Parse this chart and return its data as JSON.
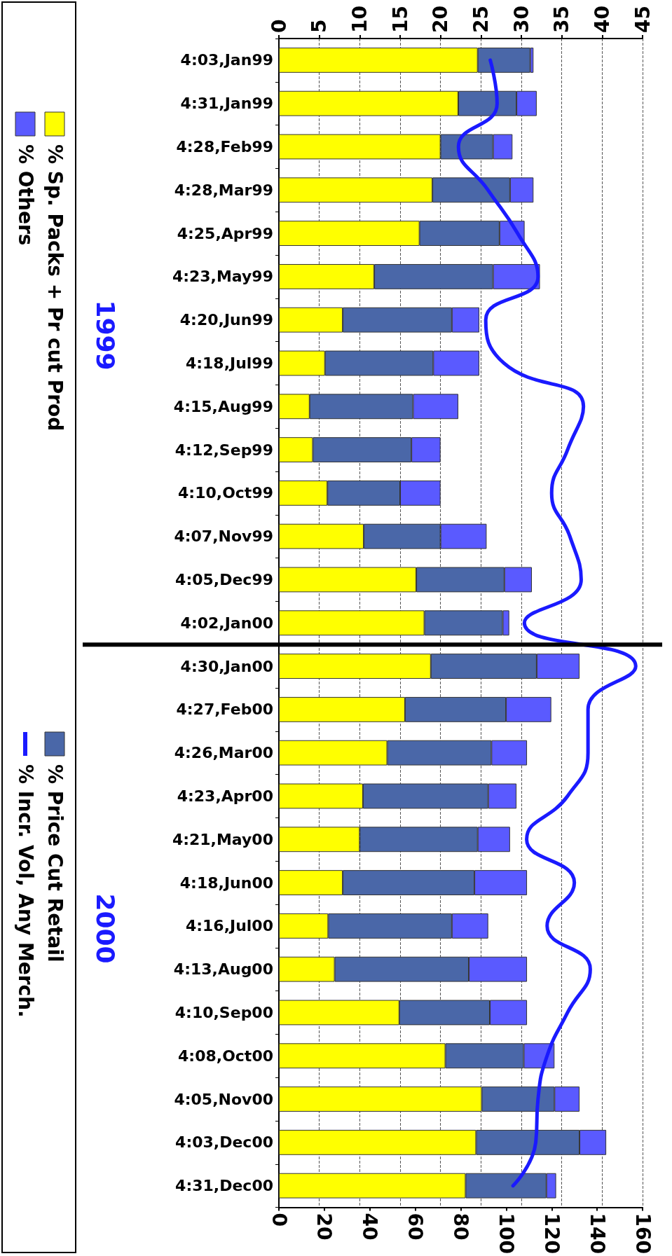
{
  "chart_data": {
    "type": "bar",
    "stacked": true,
    "orientation": "horizontal",
    "categories": [
      "4:03,Jan99",
      "4:31,Jan99",
      "4:28,Feb99",
      "4:28,Mar99",
      "4:25,Apr99",
      "4:23,May99",
      "4:20,Jun99",
      "4:18,Jul99",
      "4:15,Aug99",
      "4:12,Sep99",
      "4:10,Oct99",
      "4:07,Nov99",
      "4:05,Dec99",
      "4:02,Jan00",
      "4:30,Jan00",
      "4:27,Feb00",
      "4:26,Mar00",
      "4:23,Apr00",
      "4:21,May00",
      "4:18,Jun00",
      "4:16,Jul00",
      "4:13,Aug00",
      "4:10,Sep00",
      "4:08,Oct00",
      "4:05,Nov00",
      "4:03,Dec00",
      "4:31,Dec00"
    ],
    "series": [
      {
        "name": "% Sp. Packs + Pr cut Prod",
        "color": "#ffff00",
        "axis": "x2",
        "values": [
          24.6,
          22.2,
          20.0,
          19.0,
          17.4,
          11.8,
          7.9,
          5.7,
          3.8,
          4.2,
          6.0,
          10.5,
          17.0,
          18.0,
          18.8,
          15.6,
          13.4,
          10.4,
          10.0,
          7.9,
          6.1,
          6.9,
          14.9,
          20.6,
          25.1,
          24.4,
          23.1
        ]
      },
      {
        "name": "% Price Cut Retail",
        "color": "#4a67a8",
        "axis": "x2",
        "values": [
          6.5,
          7.2,
          6.5,
          9.6,
          9.9,
          14.7,
          13.5,
          13.4,
          12.8,
          12.2,
          9.0,
          9.5,
          10.9,
          9.7,
          13.1,
          12.5,
          12.9,
          15.5,
          14.6,
          16.3,
          15.3,
          16.6,
          11.2,
          9.7,
          9.0,
          12.8,
          10.0
        ]
      },
      {
        "name": "% Others",
        "color": "#5a5aff",
        "axis": "x2",
        "values": [
          0.4,
          2.5,
          2.4,
          2.9,
          3.1,
          5.8,
          3.4,
          5.7,
          5.6,
          3.6,
          5.0,
          5.7,
          3.4,
          0.8,
          5.3,
          5.6,
          4.4,
          3.5,
          4.0,
          6.5,
          4.5,
          7.2,
          4.6,
          3.8,
          3.1,
          3.3,
          1.2
        ]
      },
      {
        "name": "% Incr. Vol, Any Merch.",
        "color": "#1a1aff",
        "type": "line",
        "values": [
          93,
          96,
          79,
          92,
          105,
          114,
          91,
          99,
          134,
          127,
          120,
          128,
          133,
          108,
          157,
          136,
          136,
          127,
          109,
          130,
          118,
          137,
          127,
          118,
          114,
          113,
          103
        ]
      }
    ],
    "xlim": [
      0,
      160
    ],
    "xticks": [
      0,
      20,
      40,
      60,
      80,
      100,
      120,
      140,
      160
    ],
    "x2lim": [
      0,
      45
    ],
    "x2ticks": [
      0,
      5,
      10,
      15,
      20,
      25,
      30,
      35,
      40,
      45
    ],
    "grid": "x2",
    "legend": "left",
    "marker": "none",
    "ref_lines": [
      {
        "axis": "y",
        "value": "4:30,Jan00",
        "color": "#000000"
      }
    ],
    "annotations": [
      "1999",
      "2000"
    ]
  }
}
